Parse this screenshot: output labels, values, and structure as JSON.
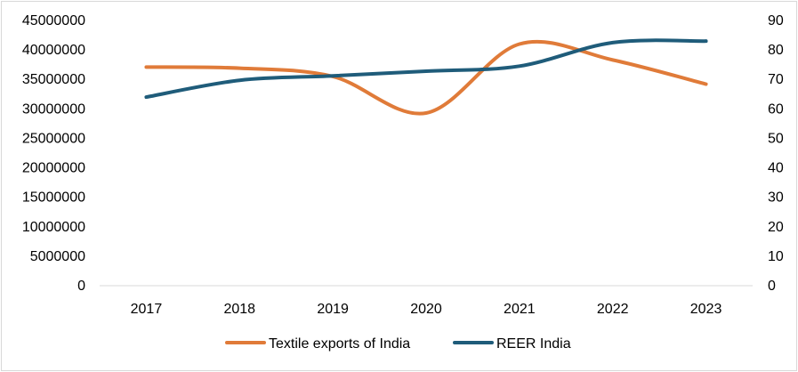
{
  "chart_data": {
    "type": "line",
    "categories": [
      "2017",
      "2018",
      "2019",
      "2020",
      "2021",
      "2022",
      "2023"
    ],
    "series": [
      {
        "name": "Textile exports of India",
        "axis": "left",
        "color": "#E07B39",
        "values": [
          37100000,
          36900000,
          35500000,
          29300000,
          41000000,
          38300000,
          34200000
        ]
      },
      {
        "name": "REER India",
        "axis": "right",
        "color": "#1F5C7A",
        "values": [
          64,
          69.7,
          71.2,
          72.8,
          74.5,
          82.5,
          83
        ]
      }
    ],
    "y_left": {
      "min": 0,
      "max": 45000000,
      "ticks": [
        "0",
        "5000000",
        "10000000",
        "15000000",
        "20000000",
        "25000000",
        "30000000",
        "35000000",
        "40000000",
        "45000000"
      ]
    },
    "y_right": {
      "min": 0,
      "max": 90,
      "ticks": [
        "0",
        "10",
        "20",
        "30",
        "40",
        "50",
        "60",
        "70",
        "80",
        "90"
      ]
    },
    "grid": false,
    "legend_position": "bottom",
    "smooth": true
  }
}
